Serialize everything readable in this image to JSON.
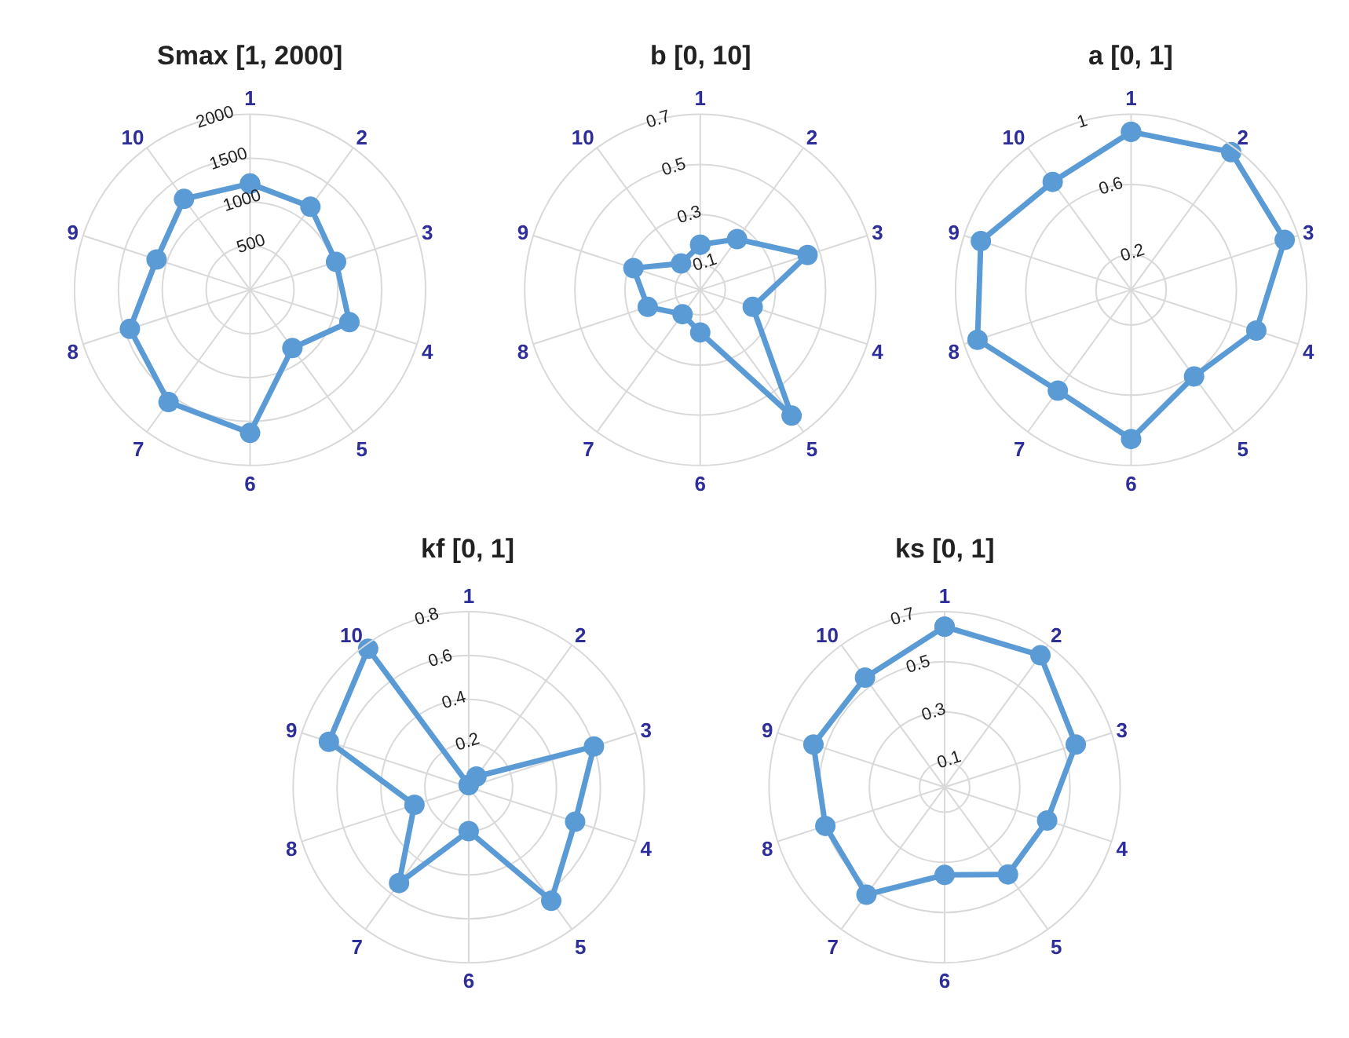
{
  "chart_data": [
    {
      "type": "radar",
      "title": "Smax [1, 2000]",
      "categories": [
        "1",
        "2",
        "3",
        "4",
        "5",
        "6",
        "7",
        "8",
        "9",
        "10"
      ],
      "marker": "circle",
      "grid": true,
      "ylim": [
        0,
        2000
      ],
      "yticks": [
        500,
        1000,
        1500,
        2000
      ],
      "series": [
        {
          "color": "#5b9bd5",
          "values": [
            1210,
            1170,
            1030,
            1190,
            820,
            1630,
            1580,
            1440,
            1120,
            1280
          ]
        }
      ]
    },
    {
      "type": "radar",
      "title": "b [0, 10]",
      "categories": [
        "1",
        "2",
        "3",
        "4",
        "5",
        "6",
        "7",
        "8",
        "9",
        "10"
      ],
      "marker": "circle",
      "grid": true,
      "ylim": [
        0,
        0.7
      ],
      "yticks": [
        0.1,
        0.3,
        0.5,
        0.7
      ],
      "series": [
        {
          "color": "#5b9bd5",
          "values": [
            0.18,
            0.25,
            0.45,
            0.22,
            0.62,
            0.17,
            0.12,
            0.22,
            0.28,
            0.13
          ]
        }
      ]
    },
    {
      "type": "radar",
      "title": "a [0, 1]",
      "categories": [
        "1",
        "2",
        "3",
        "4",
        "5",
        "6",
        "7",
        "8",
        "9",
        "10"
      ],
      "marker": "circle",
      "grid": true,
      "ylim": [
        0,
        1
      ],
      "yticks": [
        0.2,
        0.6,
        1
      ],
      "series": [
        {
          "color": "#5b9bd5",
          "values": [
            0.9,
            0.97,
            0.92,
            0.75,
            0.61,
            0.85,
            0.71,
            0.92,
            0.9,
            0.76
          ]
        }
      ]
    },
    {
      "type": "radar",
      "title": "kf [0, 1]",
      "categories": [
        "1",
        "2",
        "3",
        "4",
        "5",
        "6",
        "7",
        "8",
        "9",
        "10"
      ],
      "marker": "circle",
      "grid": true,
      "ylim": [
        0,
        0.8
      ],
      "yticks": [
        0.2,
        0.4,
        0.6,
        0.8
      ],
      "series": [
        {
          "color": "#5b9bd5",
          "values": [
            0.01,
            0.06,
            0.6,
            0.51,
            0.64,
            0.2,
            0.54,
            0.26,
            0.67,
            0.78
          ]
        }
      ]
    },
    {
      "type": "radar",
      "title": "ks [0, 1]",
      "categories": [
        "1",
        "2",
        "3",
        "4",
        "5",
        "6",
        "7",
        "8",
        "9",
        "10"
      ],
      "marker": "circle",
      "grid": true,
      "ylim": [
        0,
        0.7
      ],
      "yticks": [
        0.1,
        0.3,
        0.5,
        0.7
      ],
      "series": [
        {
          "color": "#5b9bd5",
          "values": [
            0.64,
            0.65,
            0.55,
            0.43,
            0.43,
            0.35,
            0.53,
            0.5,
            0.55,
            0.54
          ]
        }
      ]
    }
  ]
}
